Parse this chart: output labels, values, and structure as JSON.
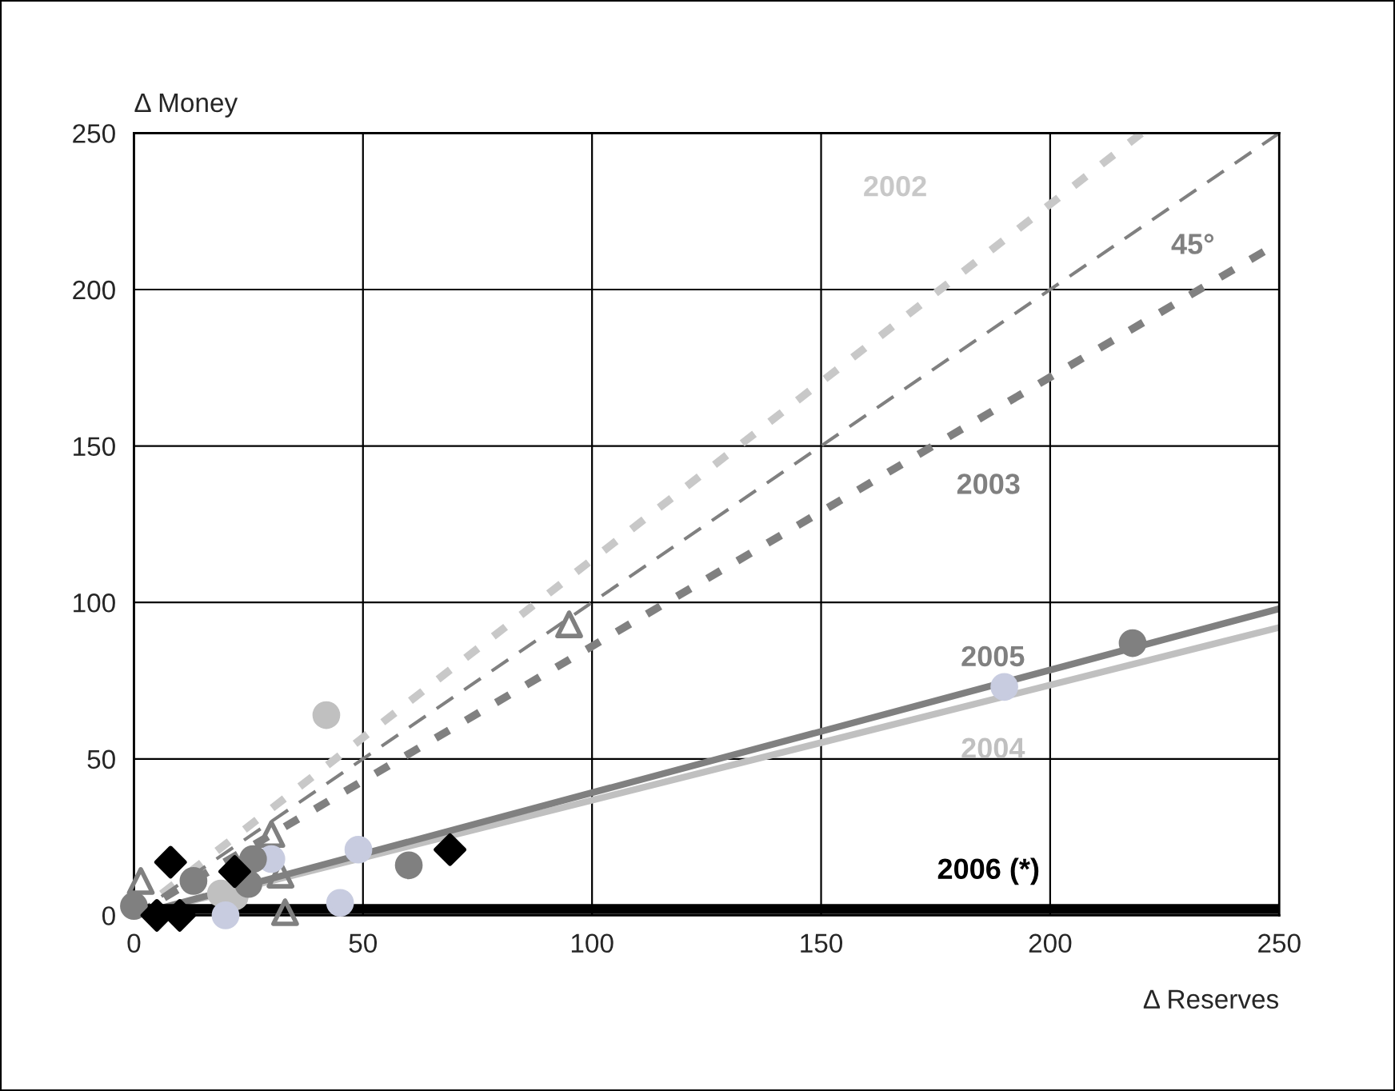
{
  "chart_data": {
    "type": "scatter",
    "xlabel": "Δ Reserves",
    "ylabel": "Δ Money",
    "xlim": [
      0,
      250
    ],
    "ylim": [
      0,
      250
    ],
    "xticks": [
      0,
      50,
      100,
      150,
      200,
      250
    ],
    "yticks": [
      0,
      50,
      100,
      150,
      200,
      250
    ],
    "grid": true,
    "legend": false,
    "series": [
      {
        "type": "line",
        "name": "2002",
        "color": "#c8c8c8",
        "line_style": "dotted",
        "marker": "none",
        "x": [
          0,
          220
        ],
        "values": [
          0,
          250
        ]
      },
      {
        "type": "line",
        "name": "45°",
        "color": "#808080",
        "line_style": "dashed",
        "marker": "none",
        "x": [
          0,
          250
        ],
        "values": [
          0,
          250
        ]
      },
      {
        "type": "line",
        "name": "2003",
        "color": "#808080",
        "line_style": "dotted",
        "marker": "none",
        "x": [
          0,
          250
        ],
        "values": [
          0,
          215
        ]
      },
      {
        "type": "line",
        "name": "2004",
        "color": "#c0c0c0",
        "line_style": "solid",
        "marker": "none",
        "x": [
          0,
          250
        ],
        "values": [
          0,
          92
        ]
      },
      {
        "type": "line",
        "name": "2005",
        "color": "#808080",
        "line_style": "solid",
        "marker": "none",
        "x": [
          0,
          250
        ],
        "values": [
          0,
          98
        ]
      },
      {
        "type": "line",
        "name": "2006 (*)",
        "color": "#000000",
        "line_style": "solid",
        "marker": "none",
        "x": [
          0,
          250
        ],
        "values": [
          2,
          2
        ]
      },
      {
        "color": "#c0c0c0",
        "marker": "circle",
        "x": [
          42,
          19,
          22
        ],
        "values": [
          64,
          7,
          6
        ]
      },
      {
        "color": "#808080",
        "marker": "triangle",
        "x": [
          95,
          30,
          32,
          33,
          1.5
        ],
        "values": [
          93,
          26,
          13,
          1,
          11
        ]
      },
      {
        "color": "#c8cce0",
        "marker": "circle",
        "x": [
          190,
          49,
          30,
          45,
          20
        ],
        "values": [
          73,
          21,
          18,
          4,
          0
        ]
      },
      {
        "color": "#808080",
        "marker": "circle",
        "x": [
          218,
          60,
          26,
          13,
          25,
          0
        ],
        "values": [
          87,
          16,
          18,
          11,
          10,
          3
        ]
      },
      {
        "color": "#000000",
        "marker": "diamond",
        "x": [
          8,
          22,
          69,
          5,
          10
        ],
        "values": [
          17,
          14,
          21,
          0,
          0
        ]
      }
    ]
  }
}
